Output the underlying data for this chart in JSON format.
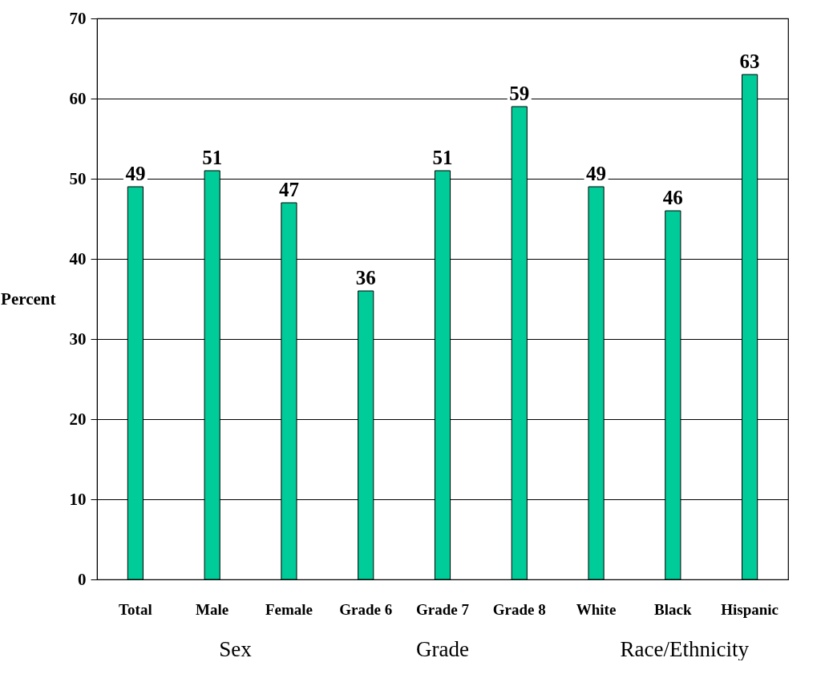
{
  "chart_data": {
    "type": "bar",
    "ylabel": "Percent",
    "categories": [
      "Total",
      "Male",
      "Female",
      "Grade 6",
      "Grade 7",
      "Grade 8",
      "White",
      "Black",
      "Hispanic"
    ],
    "values": [
      49,
      51,
      47,
      36,
      51,
      59,
      49,
      46,
      63
    ],
    "color": "#00cc99",
    "ylim": [
      0,
      70
    ],
    "yticks": [
      0,
      10,
      20,
      30,
      40,
      50,
      60,
      70
    ],
    "grid": "y",
    "data_labels": true,
    "annotations": [
      "Sex",
      "Grade",
      "Race/Ethnicity"
    ]
  }
}
